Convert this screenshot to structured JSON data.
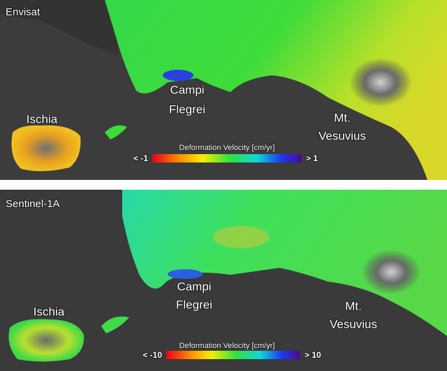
{
  "panels": [
    {
      "name": "Envisat",
      "places": [
        {
          "lines": [
            "Ischia"
          ]
        },
        {
          "lines": [
            "Campi",
            "Flegrei"
          ]
        },
        {
          "lines": [
            "Mt.",
            "Vesuvius"
          ]
        }
      ],
      "colorbar": {
        "title": "Deformation Velocity [cm/yr]",
        "min_label": "< -1",
        "max_label": "> 1"
      }
    },
    {
      "name": "Sentinel-1A",
      "places": [
        {
          "lines": [
            "Ischia"
          ]
        },
        {
          "lines": [
            "Campi",
            "Flegrei"
          ]
        },
        {
          "lines": [
            "Mt.",
            "Vesuvius"
          ]
        }
      ],
      "colorbar": {
        "title": "Deformation Velocity [cm/yr]",
        "min_label": "< -10",
        "max_label": "> 10"
      }
    }
  ]
}
